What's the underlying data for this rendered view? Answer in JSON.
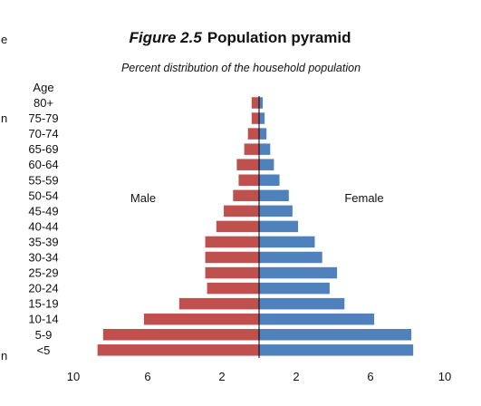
{
  "chart_data": {
    "type": "bar",
    "title_prefix": "Figure 2.5",
    "title": "Population pyramid",
    "subtitle": "Percent distribution of the household population",
    "ylabel": "Age",
    "categories": [
      "80+",
      "75-79",
      "70-74",
      "65-69",
      "60-64",
      "55-59",
      "50-54",
      "45-49",
      "40-44",
      "35-39",
      "30-34",
      "25-29",
      "20-24",
      "15-19",
      "10-14",
      "5-9",
      "<5"
    ],
    "series": [
      {
        "name": "Male",
        "color": "#c0504d",
        "values": [
          0.4,
          0.4,
          0.6,
          0.8,
          1.2,
          1.1,
          1.4,
          1.9,
          2.3,
          2.9,
          2.9,
          2.9,
          2.8,
          4.3,
          6.2,
          8.4,
          8.7
        ]
      },
      {
        "name": "Female",
        "color": "#4f81bd",
        "values": [
          0.2,
          0.3,
          0.4,
          0.6,
          0.8,
          1.1,
          1.6,
          1.8,
          2.1,
          3.0,
          3.4,
          4.2,
          3.8,
          4.6,
          6.2,
          8.2,
          8.3
        ]
      }
    ],
    "xlim": [
      -10,
      10
    ],
    "xticks": [
      -10,
      -6,
      -2,
      2,
      6,
      10
    ],
    "xtick_labels": [
      "10",
      "6",
      "2",
      "2",
      "6",
      "10"
    ],
    "grid": false,
    "legend": "inline-labels"
  },
  "edge_fragments": [
    "e",
    "n",
    "n"
  ]
}
